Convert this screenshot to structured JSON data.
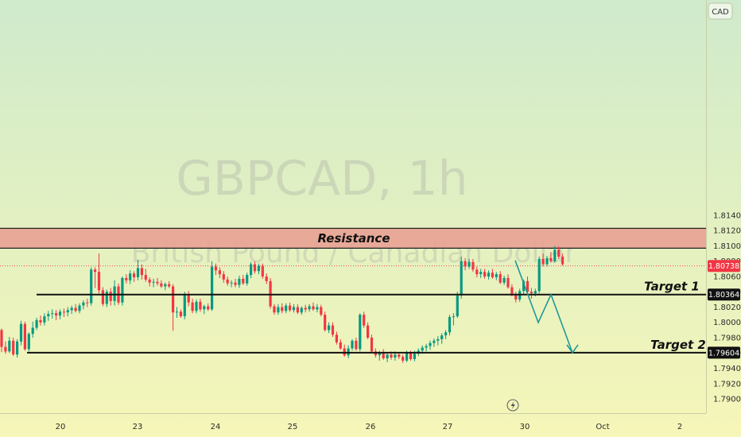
{
  "chart_data": {
    "type": "candlestick",
    "currency": "CAD",
    "watermark": {
      "symbol": "GBPCAD, 1h",
      "description": "British Pound / Canadian Dollar"
    },
    "y_axis": {
      "ticks": [
        "1.81400",
        "1.81200",
        "1.81000",
        "1.80800",
        "1.80600",
        "1.80400",
        "1.80200",
        "1.80000",
        "1.79800",
        "1.79600",
        "1.79400",
        "1.79200",
        "1.79000"
      ],
      "range": [
        1.7885,
        1.8153
      ]
    },
    "x_axis": {
      "ticks": [
        "20",
        "23",
        "24",
        "25",
        "26",
        "27",
        "30",
        "Oct",
        "2"
      ]
    },
    "current_price": {
      "label": "1.80738",
      "value": 1.80738,
      "color": "#f23645"
    },
    "zones": [
      {
        "name": "Resistance",
        "label": "Resistance",
        "low": 1.8097,
        "high": 1.8123,
        "color": "#e8a193"
      }
    ],
    "levels": [
      {
        "name": "target-1",
        "label": "Target 1",
        "value": 1.80364
      },
      {
        "name": "target-2",
        "label": "Target 2",
        "value": 1.79604
      }
    ],
    "projection": [
      1.8081,
      1.79998,
      1.80364,
      1.79604
    ],
    "colors": {
      "up": "#089981",
      "down": "#f23645",
      "background_top": "#cfeacc",
      "background_bottom": "#f6f6b8"
    },
    "candles": [
      [
        1.799,
        1.7992,
        1.7961,
        1.7968
      ],
      [
        1.7968,
        1.7975,
        1.7959,
        1.7962
      ],
      [
        1.7962,
        1.7981,
        1.796,
        1.7976
      ],
      [
        1.7976,
        1.798,
        1.7956,
        1.7958
      ],
      [
        1.7958,
        1.7978,
        1.7954,
        1.7975
      ],
      [
        1.7975,
        1.8002,
        1.797,
        1.7998
      ],
      [
        1.7998,
        1.8001,
        1.7963,
        1.7965
      ],
      [
        1.7965,
        1.7987,
        1.7962,
        1.7985
      ],
      [
        1.7985,
        1.8001,
        1.798,
        1.7993
      ],
      [
        1.7993,
        1.8006,
        1.799,
        1.8003
      ],
      [
        1.8003,
        1.8009,
        1.7996,
        1.8
      ],
      [
        1.8,
        1.8012,
        1.7996,
        1.8008
      ],
      [
        1.8008,
        1.8015,
        1.8002,
        1.8011
      ],
      [
        1.8011,
        1.8017,
        1.8005,
        1.8012
      ],
      [
        1.8012,
        1.8016,
        1.8003,
        1.8009
      ],
      [
        1.8009,
        1.8017,
        1.8004,
        1.8014
      ],
      [
        1.8014,
        1.8018,
        1.8007,
        1.8013
      ],
      [
        1.8013,
        1.802,
        1.8008,
        1.8016
      ],
      [
        1.8016,
        1.8022,
        1.8011,
        1.8019
      ],
      [
        1.8019,
        1.8024,
        1.8013,
        1.8015
      ],
      [
        1.8015,
        1.8025,
        1.8012,
        1.8022
      ],
      [
        1.8022,
        1.8029,
        1.8017,
        1.8026
      ],
      [
        1.8026,
        1.8031,
        1.802,
        1.8025
      ],
      [
        1.8025,
        1.8072,
        1.8022,
        1.8069
      ],
      [
        1.8069,
        1.8072,
        1.8045,
        1.8066
      ],
      [
        1.8066,
        1.809,
        1.8038,
        1.8042
      ],
      [
        1.8042,
        1.8046,
        1.8021,
        1.8024
      ],
      [
        1.8024,
        1.8043,
        1.802,
        1.804
      ],
      [
        1.804,
        1.8045,
        1.8022,
        1.8028
      ],
      [
        1.8028,
        1.8055,
        1.8022,
        1.8047
      ],
      [
        1.8047,
        1.8051,
        1.8023,
        1.8026
      ],
      [
        1.8026,
        1.806,
        1.8022,
        1.8058
      ],
      [
        1.8058,
        1.8063,
        1.8051,
        1.8055
      ],
      [
        1.8055,
        1.8068,
        1.805,
        1.8064
      ],
      [
        1.8064,
        1.8067,
        1.8053,
        1.8059
      ],
      [
        1.8059,
        1.8082,
        1.8055,
        1.8071
      ],
      [
        1.8071,
        1.8076,
        1.8056,
        1.8062
      ],
      [
        1.8062,
        1.807,
        1.8053,
        1.8056
      ],
      [
        1.8056,
        1.8059,
        1.8047,
        1.8052
      ],
      [
        1.8052,
        1.8057,
        1.8046,
        1.8053
      ],
      [
        1.8053,
        1.8058,
        1.8048,
        1.8051
      ],
      [
        1.8051,
        1.8055,
        1.8045,
        1.8047
      ],
      [
        1.8047,
        1.8052,
        1.8042,
        1.805
      ],
      [
        1.805,
        1.8054,
        1.8045,
        1.8047
      ],
      [
        1.8047,
        1.805,
        1.7989,
        1.8013
      ],
      [
        1.8013,
        1.802,
        1.8006,
        1.8014
      ],
      [
        1.8014,
        1.8017,
        1.8006,
        1.8008
      ],
      [
        1.8008,
        1.804,
        1.8004,
        1.8037
      ],
      [
        1.8037,
        1.8041,
        1.8021,
        1.8026
      ],
      [
        1.8026,
        1.8031,
        1.8012,
        1.8015
      ],
      [
        1.8015,
        1.803,
        1.8012,
        1.8027
      ],
      [
        1.8027,
        1.8031,
        1.8014,
        1.8017
      ],
      [
        1.8017,
        1.8023,
        1.8011,
        1.8021
      ],
      [
        1.8021,
        1.8025,
        1.8015,
        1.8017
      ],
      [
        1.8017,
        1.808,
        1.8015,
        1.8073
      ],
      [
        1.8073,
        1.8077,
        1.8062,
        1.8068
      ],
      [
        1.8068,
        1.8072,
        1.8058,
        1.8063
      ],
      [
        1.8063,
        1.8067,
        1.8052,
        1.8056
      ],
      [
        1.8056,
        1.806,
        1.8048,
        1.8051
      ],
      [
        1.8051,
        1.8055,
        1.8046,
        1.8052
      ],
      [
        1.8052,
        1.8057,
        1.8046,
        1.8049
      ],
      [
        1.8049,
        1.8061,
        1.8045,
        1.8057
      ],
      [
        1.8057,
        1.8062,
        1.8049,
        1.8051
      ],
      [
        1.8051,
        1.8065,
        1.8048,
        1.8062
      ],
      [
        1.8062,
        1.8079,
        1.8058,
        1.8076
      ],
      [
        1.8076,
        1.808,
        1.8064,
        1.8067
      ],
      [
        1.8067,
        1.8077,
        1.8063,
        1.8074
      ],
      [
        1.8074,
        1.8077,
        1.8057,
        1.806
      ],
      [
        1.806,
        1.8064,
        1.805,
        1.8054
      ],
      [
        1.8054,
        1.8058,
        1.8018,
        1.8021
      ],
      [
        1.8021,
        1.8024,
        1.801,
        1.8013
      ],
      [
        1.8013,
        1.8024,
        1.801,
        1.802
      ],
      [
        1.802,
        1.8025,
        1.8012,
        1.8015
      ],
      [
        1.8015,
        1.8025,
        1.8012,
        1.8022
      ],
      [
        1.8022,
        1.8026,
        1.8014,
        1.8016
      ],
      [
        1.8016,
        1.8024,
        1.8013,
        1.802
      ],
      [
        1.802,
        1.8024,
        1.8011,
        1.8013
      ],
      [
        1.8013,
        1.8021,
        1.801,
        1.8019
      ],
      [
        1.8019,
        1.8023,
        1.8013,
        1.8017
      ],
      [
        1.8017,
        1.8024,
        1.8014,
        1.8021
      ],
      [
        1.8021,
        1.8026,
        1.8015,
        1.8017
      ],
      [
        1.8017,
        1.8024,
        1.8013,
        1.802
      ],
      [
        1.802,
        1.8023,
        1.8008,
        1.801
      ],
      [
        1.801,
        1.8014,
        1.7988,
        1.799
      ],
      [
        1.799,
        1.8,
        1.7986,
        1.7996
      ],
      [
        1.7996,
        1.8,
        1.7981,
        1.7984
      ],
      [
        1.7984,
        1.7988,
        1.7971,
        1.7974
      ],
      [
        1.7974,
        1.7978,
        1.7964,
        1.7966
      ],
      [
        1.7966,
        1.7971,
        1.7955,
        1.7957
      ],
      [
        1.7957,
        1.797,
        1.7953,
        1.7966
      ],
      [
        1.7966,
        1.7978,
        1.7963,
        1.7976
      ],
      [
        1.7976,
        1.798,
        1.7963,
        1.7965
      ],
      [
        1.7965,
        1.8012,
        1.7962,
        1.801
      ],
      [
        1.801,
        1.8014,
        1.7993,
        1.7996
      ],
      [
        1.7996,
        1.8,
        1.7978,
        1.798
      ],
      [
        1.798,
        1.7984,
        1.796,
        1.7962
      ],
      [
        1.7962,
        1.7966,
        1.7954,
        1.7957
      ],
      [
        1.7957,
        1.7963,
        1.795,
        1.796
      ],
      [
        1.796,
        1.7965,
        1.7951,
        1.7953
      ],
      [
        1.7953,
        1.7961,
        1.7948,
        1.7958
      ],
      [
        1.7958,
        1.7962,
        1.7951,
        1.7954
      ],
      [
        1.7954,
        1.7962,
        1.795,
        1.7958
      ],
      [
        1.7958,
        1.7961,
        1.7952,
        1.7955
      ],
      [
        1.7955,
        1.7958,
        1.7947,
        1.795
      ],
      [
        1.795,
        1.7963,
        1.7948,
        1.7961
      ],
      [
        1.7961,
        1.7963,
        1.795,
        1.7952
      ],
      [
        1.7952,
        1.7963,
        1.7949,
        1.7959
      ],
      [
        1.7959,
        1.7966,
        1.7956,
        1.7963
      ],
      [
        1.7963,
        1.797,
        1.7959,
        1.7967
      ],
      [
        1.7967,
        1.7972,
        1.7962,
        1.7969
      ],
      [
        1.7969,
        1.7976,
        1.7964,
        1.7973
      ],
      [
        1.7973,
        1.7979,
        1.7968,
        1.7976
      ],
      [
        1.7976,
        1.7982,
        1.797,
        1.7978
      ],
      [
        1.7978,
        1.7986,
        1.7972,
        1.7983
      ],
      [
        1.7983,
        1.799,
        1.7978,
        1.7987
      ],
      [
        1.7987,
        1.801,
        1.7983,
        1.8007
      ],
      [
        1.8007,
        1.8012,
        1.7996,
        1.8008
      ],
      [
        1.8008,
        1.804,
        1.8006,
        1.8035
      ],
      [
        1.8035,
        1.8086,
        1.8031,
        1.808
      ],
      [
        1.808,
        1.8084,
        1.8068,
        1.8073
      ],
      [
        1.8073,
        1.8083,
        1.807,
        1.8079
      ],
      [
        1.8079,
        1.8083,
        1.8066,
        1.8069
      ],
      [
        1.8069,
        1.8073,
        1.8059,
        1.8063
      ],
      [
        1.8063,
        1.807,
        1.8058,
        1.8066
      ],
      [
        1.8066,
        1.807,
        1.8057,
        1.806
      ],
      [
        1.806,
        1.8068,
        1.8056,
        1.8065
      ],
      [
        1.8065,
        1.807,
        1.8057,
        1.8059
      ],
      [
        1.8059,
        1.8066,
        1.8055,
        1.8063
      ],
      [
        1.8063,
        1.8067,
        1.805,
        1.8052
      ],
      [
        1.8052,
        1.8061,
        1.8049,
        1.8058
      ],
      [
        1.8058,
        1.8063,
        1.8044,
        1.8046
      ],
      [
        1.8046,
        1.805,
        1.8034,
        1.8036
      ],
      [
        1.8036,
        1.804,
        1.8026,
        1.803
      ],
      [
        1.803,
        1.8044,
        1.8027,
        1.8041
      ],
      [
        1.8041,
        1.8056,
        1.8037,
        1.8054
      ],
      [
        1.8054,
        1.806,
        1.8038,
        1.804
      ],
      [
        1.804,
        1.8045,
        1.8031,
        1.8038
      ],
      [
        1.8038,
        1.8044,
        1.8034,
        1.8041
      ],
      [
        1.8041,
        1.8086,
        1.8038,
        1.8083
      ],
      [
        1.8083,
        1.809,
        1.8073,
        1.8076
      ],
      [
        1.8076,
        1.8087,
        1.8073,
        1.8084
      ],
      [
        1.8084,
        1.8092,
        1.8078,
        1.808
      ],
      [
        1.808,
        1.81,
        1.8078,
        1.8095
      ],
      [
        1.8095,
        1.8099,
        1.8083,
        1.8086
      ],
      [
        1.8086,
        1.809,
        1.8074,
        1.8076
      ]
    ]
  }
}
